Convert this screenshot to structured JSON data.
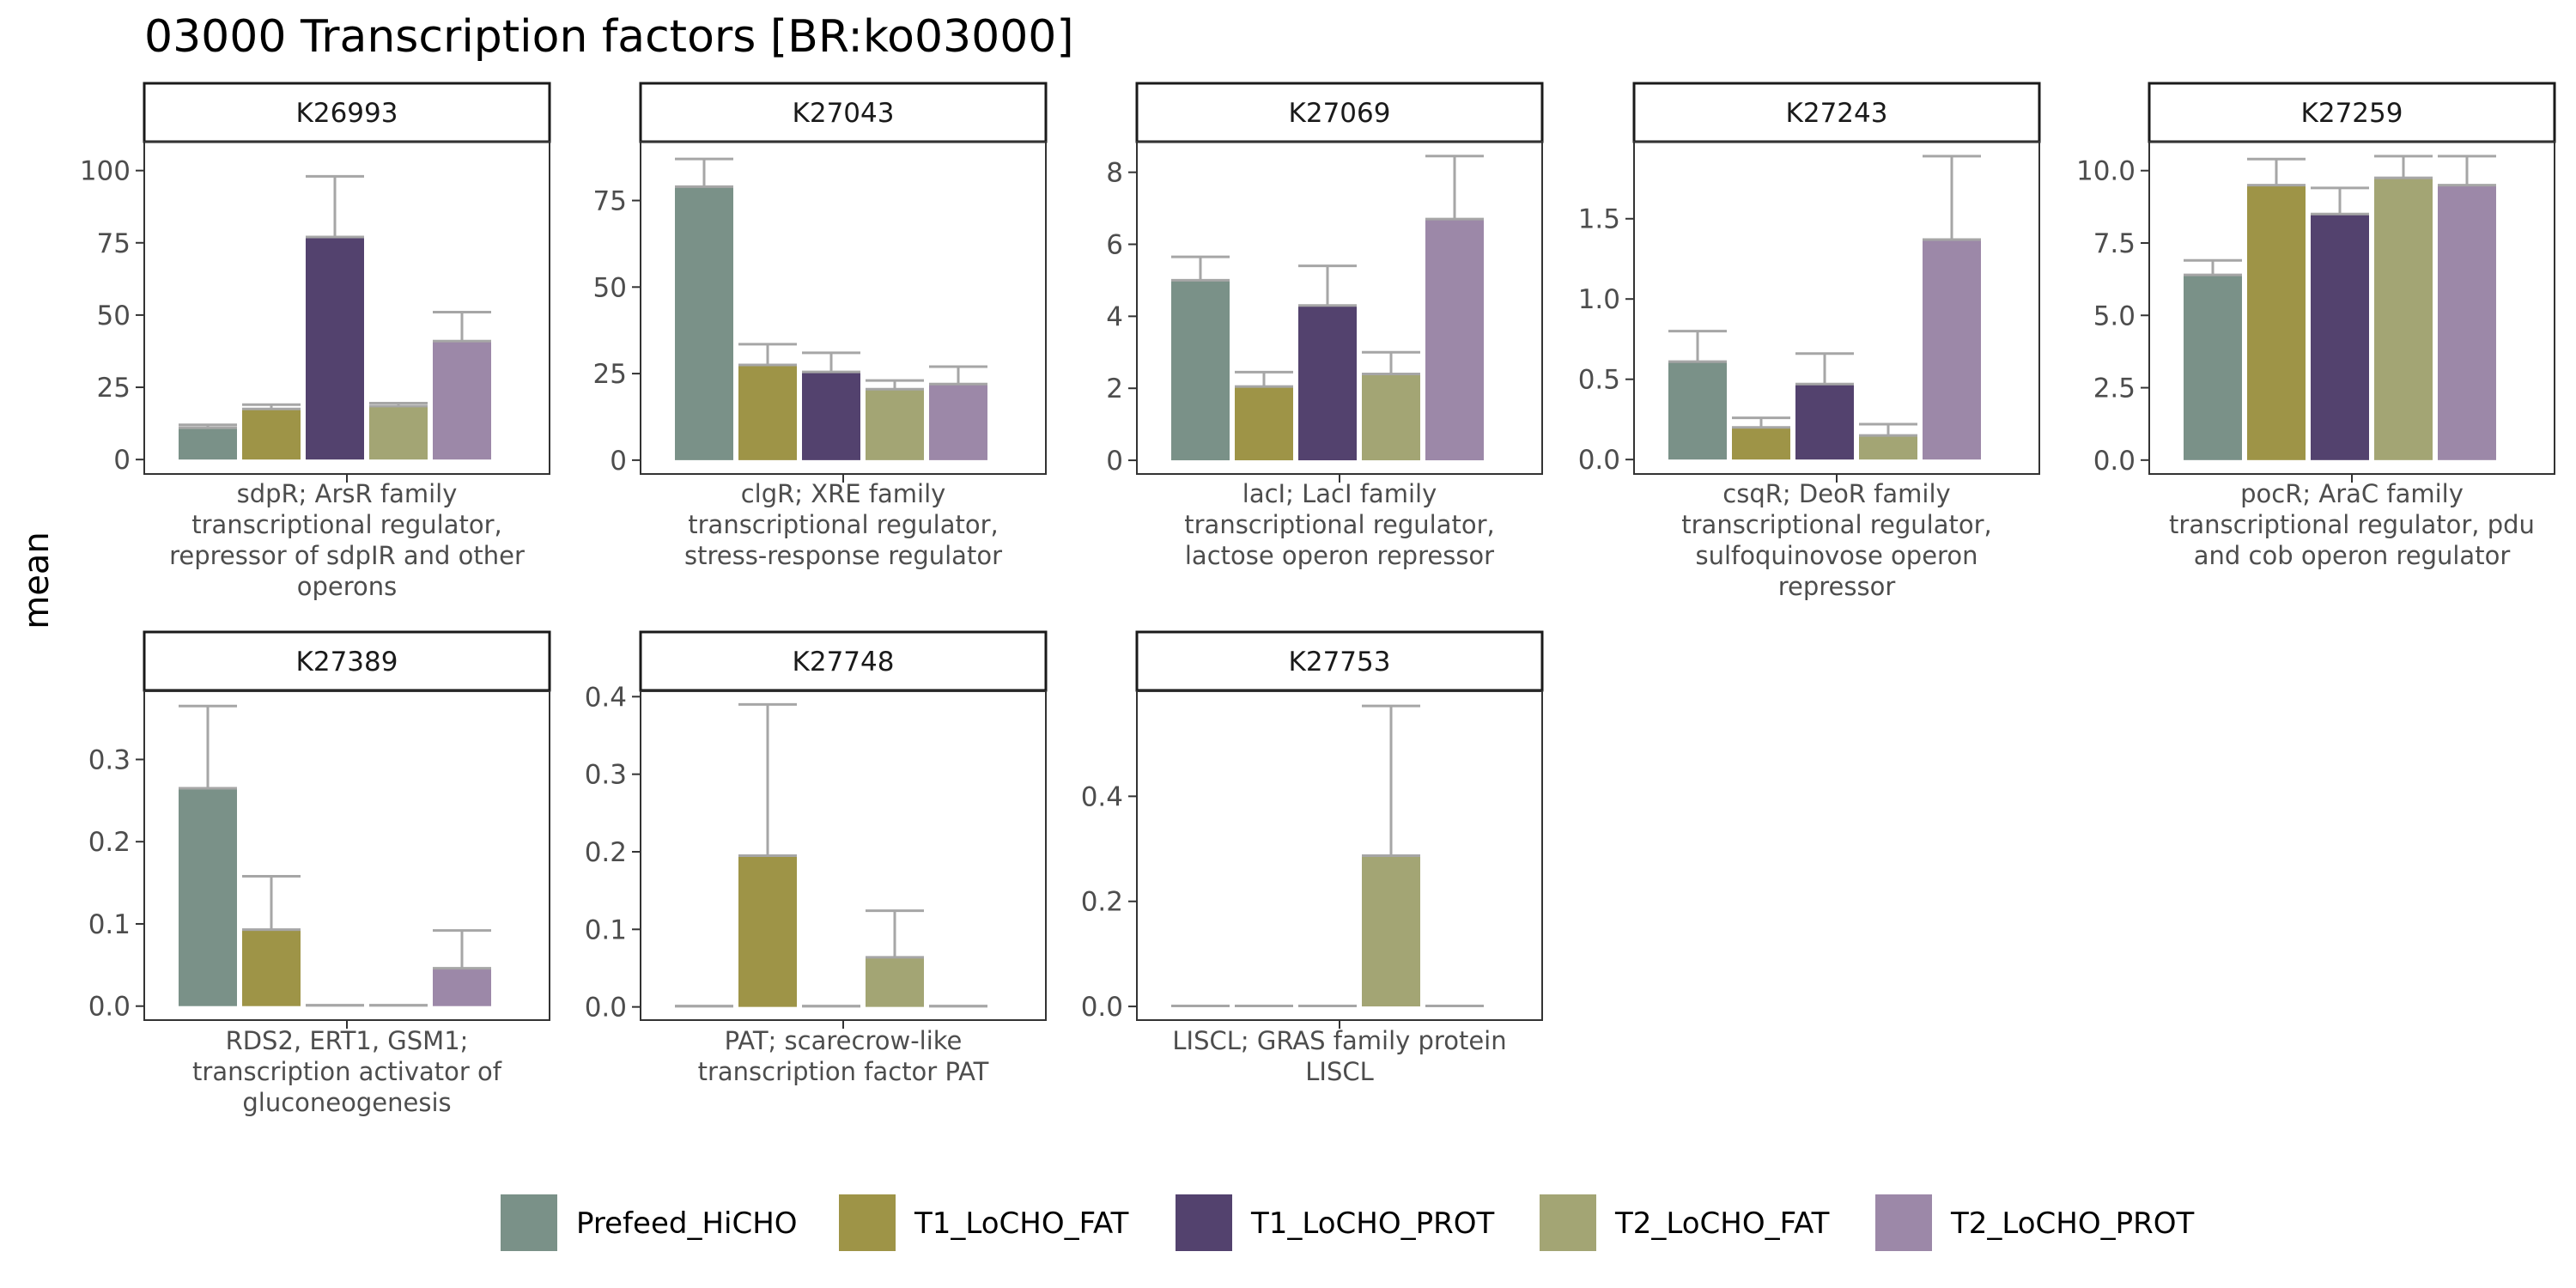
{
  "title": "03000 Transcription factors [BR:ko03000]",
  "ylabel": "mean",
  "colors": {
    "Prefeed_HiCHO": "#7a9188",
    "T1_LoCHO_FAT": "#9e9447",
    "T1_LoCHO_PROT": "#53426e",
    "T2_LoCHO_FAT": "#a3a574",
    "T2_LoCHO_PROT": "#9c88a8",
    "error_bar": "#a6a6a6"
  },
  "legend": [
    "Prefeed_HiCHO",
    "T1_LoCHO_FAT",
    "T1_LoCHO_PROT",
    "T2_LoCHO_FAT",
    "T2_LoCHO_PROT"
  ],
  "chart_data": {
    "type": "bar",
    "title": "03000 Transcription factors [BR:ko03000]",
    "ylabel": "mean",
    "legend_position": "bottom",
    "grid": false,
    "series_names": [
      "Prefeed_HiCHO",
      "T1_LoCHO_FAT",
      "T1_LoCHO_PROT",
      "T2_LoCHO_FAT",
      "T2_LoCHO_PROT"
    ],
    "panels": [
      {
        "id": "K26993",
        "xlabel": [
          "sdpR; ArsR family",
          "transcriptional regulator,",
          "repressor of sdpIR and other",
          "operons"
        ],
        "ylim": [
          -5,
          110
        ],
        "yticks": [
          0,
          25,
          50,
          75,
          100
        ],
        "tick_labels": [
          "0",
          "25",
          "50",
          "75",
          "100"
        ],
        "values": [
          11,
          17.5,
          77,
          18.5,
          41
        ],
        "errors": [
          12,
          19,
          98,
          19.5,
          51
        ]
      },
      {
        "id": "K27043",
        "xlabel": [
          "clgR; XRE family",
          "transcriptional regulator,",
          "stress-response regulator"
        ],
        "ylim": [
          -4,
          92
        ],
        "yticks": [
          0,
          25,
          50,
          75
        ],
        "tick_labels": [
          "0",
          "25",
          "50",
          "75"
        ],
        "values": [
          79,
          27.5,
          25.5,
          20.5,
          22
        ],
        "errors": [
          87,
          33.5,
          31,
          23,
          27
        ]
      },
      {
        "id": "K27069",
        "xlabel": [
          "lacI; LacI family",
          "transcriptional regulator,",
          "lactose operon repressor"
        ],
        "ylim": [
          -0.38,
          8.85
        ],
        "yticks": [
          0,
          2,
          4,
          6,
          8
        ],
        "tick_labels": [
          "0",
          "2",
          "4",
          "6",
          "8"
        ],
        "values": [
          5.0,
          2.05,
          4.3,
          2.4,
          6.7
        ],
        "errors": [
          5.65,
          2.45,
          5.4,
          3.0,
          8.45
        ]
      },
      {
        "id": "K27243",
        "xlabel": [
          "csqR; DeoR family",
          "transcriptional regulator,",
          "sulfoquinovose operon",
          "repressor"
        ],
        "ylim": [
          -0.09,
          1.98
        ],
        "yticks": [
          0,
          0.5,
          1.0,
          1.5
        ],
        "tick_labels": [
          "0.0",
          "0.5",
          "1.0",
          "1.5"
        ],
        "values": [
          0.61,
          0.2,
          0.47,
          0.15,
          1.37
        ],
        "errors": [
          0.8,
          0.26,
          0.66,
          0.22,
          1.89
        ]
      },
      {
        "id": "K27259",
        "xlabel": [
          "pocR; AraC family",
          "transcriptional regulator, pdu",
          "and cob operon regulator"
        ],
        "ylim": [
          -0.48,
          11.0
        ],
        "yticks": [
          0,
          2.5,
          5.0,
          7.5,
          10.0
        ],
        "tick_labels": [
          "0.0",
          "2.5",
          "5.0",
          "7.5",
          "10.0"
        ],
        "values": [
          6.4,
          9.5,
          8.5,
          9.75,
          9.5
        ],
        "errors": [
          6.9,
          10.4,
          9.4,
          10.5,
          10.5
        ]
      },
      {
        "id": "K27389",
        "xlabel": [
          "RDS2, ERT1, GSM1;",
          "transcription activator of",
          "gluconeogenesis"
        ],
        "ylim": [
          -0.017,
          0.383
        ],
        "yticks": [
          0,
          0.1,
          0.2,
          0.3
        ],
        "tick_labels": [
          "0.0",
          "0.1",
          "0.2",
          "0.3"
        ],
        "values": [
          0.265,
          0.093,
          0.001,
          0.001,
          0.046
        ],
        "errors": [
          0.365,
          0.158,
          0.001,
          0.001,
          0.092
        ]
      },
      {
        "id": "K27748",
        "xlabel": [
          "PAT; scarecrow-like",
          "transcription factor PAT"
        ],
        "ylim": [
          -0.017,
          0.407
        ],
        "yticks": [
          0,
          0.1,
          0.2,
          0.3,
          0.4
        ],
        "tick_labels": [
          "0.0",
          "0.1",
          "0.2",
          "0.3",
          "0.4"
        ],
        "values": [
          0.001,
          0.195,
          0.001,
          0.064,
          0.001
        ],
        "errors": [
          0.001,
          0.39,
          0.001,
          0.124,
          0.001
        ]
      },
      {
        "id": "K27753",
        "xlabel": [
          "LISCL; GRAS family protein",
          "LISCL"
        ],
        "ylim": [
          -0.026,
          0.6
        ],
        "yticks": [
          0,
          0.2,
          0.4
        ],
        "tick_labels": [
          "0.0",
          "0.2",
          "0.4"
        ],
        "values": [
          0.001,
          0.001,
          0.001,
          0.287,
          0.001
        ],
        "errors": [
          0.001,
          0.001,
          0.001,
          0.572,
          0.001
        ]
      }
    ]
  }
}
